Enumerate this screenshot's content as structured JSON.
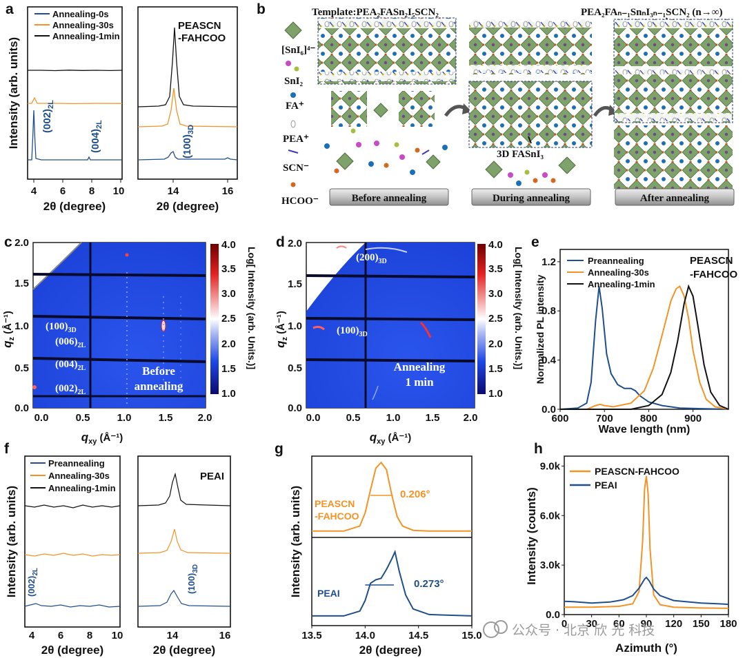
{
  "colors": {
    "navy": "#1f4e8c",
    "orange": "#f39325",
    "black": "#111111",
    "gray": "#8a8a8a",
    "green": "#6e9a5a",
    "brown": "#8a5a3a"
  },
  "panels": {
    "a": "a",
    "b": "b",
    "c": "c",
    "d": "d",
    "e": "e",
    "f": "f",
    "g": "g",
    "h": "h"
  },
  "panel_a": {
    "ylabel": "Intensity (arb. units)",
    "xlabel": "2θ (degree)",
    "legend": [
      "Annealing-0s",
      "Annealing-30s",
      "Annealing-1min"
    ],
    "ann_002": "(002)",
    "ann_002_sub": "2L",
    "ann_004": "(004)",
    "ann_004_sub": "2L",
    "right_title_1": "PEASCN",
    "right_title_2": "-FAHCOO",
    "ann_100": "(100)",
    "ann_100_sub": "3D",
    "left_ticks": [
      "4",
      "6",
      "8",
      "10"
    ],
    "right_ticks": [
      "14",
      "16"
    ]
  },
  "panel_b": {
    "template_label": "Template:PEA₂FASn₂I₅SCN₂",
    "after_label": "PEA₂FAₙ₋₁SnₙI₃ₙ₋₁SCN₂ (n→∞)",
    "legend": [
      "[SnI₆]⁴⁻",
      "SnI₂",
      "FA⁺",
      "PEA⁺",
      "SCN⁻",
      "HCOO⁻"
    ],
    "stage_before": "Before annealing",
    "stage_during": "During annealing",
    "stage_after": "After annealing",
    "fa_label": "3D FASnI₃"
  },
  "panel_c": {
    "ylabel": "q",
    "ylabel_sub": "z",
    "ylabel_unit": " (Å⁻¹)",
    "xlabel": "q",
    "xlabel_sub": "xy",
    "xlabel_unit": " (Å⁻¹)",
    "yticks": [
      "0.0",
      "0.5",
      "1.0",
      "1.5",
      "2.0"
    ],
    "xticks": [
      "0.0",
      "0.5",
      "1.0",
      "1.5",
      "2.0"
    ],
    "cbar_ticks": [
      "1.0",
      "1.5",
      "2.0",
      "2.5",
      "3.0",
      "3.5",
      "4.0"
    ],
    "cbar_label": "Log[ Intensity (arb. Units.)]",
    "labels": [
      [
        "(100)",
        "3D"
      ],
      [
        "(006)",
        "2L"
      ],
      [
        "(004)",
        "2L"
      ],
      [
        "(002)",
        "2L"
      ]
    ],
    "note_1": "Before",
    "note_2": "annealing"
  },
  "panel_d": {
    "ylabel": "q",
    "ylabel_sub": "z",
    "ylabel_unit": " (Å⁻¹)",
    "xlabel": "q",
    "xlabel_sub": "xy",
    "xlabel_unit": " (Å⁻¹)",
    "yticks": [
      "0.0",
      "0.5",
      "1.0",
      "1.5",
      "2.0"
    ],
    "xticks": [
      "0.0",
      "0.5",
      "1.0",
      "1.5",
      "2.0"
    ],
    "cbar_ticks": [
      "1.0",
      "1.5",
      "2.0",
      "2.5",
      "3.0",
      "3.5",
      "4.0"
    ],
    "cbar_label": "Log[ Intensity (arb. Units.)]",
    "labels": [
      [
        "(200)",
        "3D"
      ],
      [
        "(100)",
        "3D"
      ]
    ],
    "note_1": "Annealing",
    "note_2": "1 min"
  },
  "chart_data": [
    {
      "panel": "e",
      "type": "line",
      "title": "PEASCN -FAHCOO",
      "xlabel": "Wave length (nm)",
      "ylabel": "Normalized PL intensity",
      "xlim": [
        600,
        980
      ],
      "ylim": [
        0,
        1.3
      ],
      "xticks": [
        "600",
        "700",
        "800",
        "900"
      ],
      "yticks": [
        "0.0",
        "0.4",
        "0.8",
        "1.2"
      ],
      "series": [
        {
          "name": "Preannealing",
          "x": [
            600,
            640,
            660,
            670,
            680,
            688,
            695,
            705,
            715,
            730,
            745,
            760,
            770,
            780,
            800,
            830,
            870,
            920,
            980
          ],
          "y": [
            0,
            0.01,
            0.05,
            0.22,
            0.72,
            1.0,
            0.82,
            0.45,
            0.29,
            0.2,
            0.17,
            0.17,
            0.15,
            0.11,
            0.06,
            0.03,
            0.01,
            0.005,
            0
          ]
        },
        {
          "name": "Annealing-30s",
          "x": [
            600,
            660,
            680,
            690,
            700,
            720,
            760,
            790,
            810,
            830,
            850,
            862,
            870,
            880,
            890,
            900,
            915,
            930,
            950,
            980
          ],
          "y": [
            0,
            0,
            0.03,
            0.04,
            0.03,
            0.02,
            0.05,
            0.15,
            0.33,
            0.6,
            0.88,
            0.98,
            1.0,
            0.92,
            0.74,
            0.48,
            0.22,
            0.08,
            0.02,
            0
          ]
        },
        {
          "name": "Annealing-1min",
          "x": [
            600,
            760,
            800,
            830,
            850,
            865,
            880,
            890,
            900,
            910,
            925,
            940,
            960,
            980
          ],
          "y": [
            0,
            0,
            0.03,
            0.12,
            0.3,
            0.55,
            0.86,
            1.0,
            0.92,
            0.7,
            0.36,
            0.14,
            0.03,
            0
          ]
        }
      ]
    },
    {
      "panel": "h",
      "type": "line",
      "xlabel": "Azimuth (°)",
      "ylabel": "Intensity (counts)",
      "xlim": [
        0,
        180
      ],
      "ylim": [
        0,
        9600
      ],
      "xticks": [
        "0",
        "30",
        "60",
        "90",
        "120",
        "150",
        "180"
      ],
      "yticks": [
        "0.0",
        "3.0k",
        "6.0k",
        "9.0k"
      ],
      "series": [
        {
          "name": "PEASCN-FAHCOO",
          "x": [
            0,
            30,
            60,
            75,
            82,
            86,
            88,
            90,
            92,
            94,
            98,
            105,
            120,
            150,
            180
          ],
          "y": [
            450,
            450,
            500,
            650,
            1400,
            4500,
            7600,
            8400,
            7300,
            4000,
            1200,
            600,
            450,
            400,
            380
          ]
        },
        {
          "name": "PEAI",
          "x": [
            0,
            10,
            30,
            50,
            65,
            75,
            82,
            88,
            90,
            93,
            98,
            105,
            120,
            150,
            170,
            180
          ],
          "y": [
            800,
            780,
            700,
            760,
            900,
            1150,
            1600,
            2150,
            2250,
            2050,
            1550,
            1150,
            850,
            700,
            650,
            620
          ]
        }
      ]
    },
    {
      "panel": "g",
      "type": "line",
      "xlabel": "2θ (degree)",
      "ylabel": "Intensity (arb. units)",
      "xlim": [
        13.5,
        15.0
      ],
      "xticks": [
        "13.5",
        "14.0",
        "14.5",
        "15.0"
      ],
      "fwhm": [
        "0.206°",
        "0.273°"
      ],
      "series": [
        {
          "name": "PEASCN -FAHCOO",
          "x": [
            13.5,
            13.8,
            13.95,
            14.0,
            14.05,
            14.1,
            14.15,
            14.2,
            14.25,
            14.3,
            14.35,
            14.45,
            14.6,
            15.0
          ],
          "y": [
            0.05,
            0.05,
            0.12,
            0.3,
            0.62,
            0.92,
            1.0,
            0.9,
            0.55,
            0.25,
            0.12,
            0.06,
            0.05,
            0.05
          ]
        },
        {
          "name": "PEAI",
          "x": [
            13.5,
            13.8,
            13.95,
            14.0,
            14.05,
            14.1,
            14.15,
            14.2,
            14.25,
            14.28,
            14.32,
            14.38,
            14.45,
            14.6,
            15.0
          ],
          "y": [
            0.08,
            0.08,
            0.15,
            0.3,
            0.55,
            0.6,
            0.62,
            0.75,
            0.9,
            1.0,
            0.72,
            0.38,
            0.18,
            0.1,
            0.08
          ]
        }
      ]
    }
  ],
  "panel_f": {
    "ylabel": "Intensity (arb. units)",
    "xlabel": "2θ (degree)",
    "legend": [
      "Preannealing",
      "Annealing-30s",
      "Annealing-1min"
    ],
    "right_title": "PEAI",
    "ann_002": "(002)",
    "ann_002_sub": "2L",
    "ann_100": "(100)",
    "ann_100_sub": "3D",
    "left_ticks": [
      "4",
      "6",
      "8",
      "10"
    ],
    "right_ticks": [
      "14",
      "16"
    ]
  },
  "watermark": "公众号 · 北京 欣 光 科技"
}
